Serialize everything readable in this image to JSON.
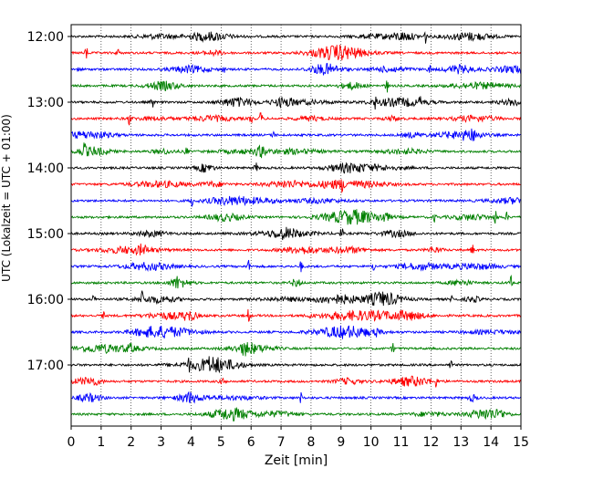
{
  "chart_data": {
    "type": "line",
    "title": "",
    "xlabel": "Zeit  [min]",
    "ylabel": "UTC (Lokalzeit = UTC + 01:00)",
    "xlim": [
      0,
      15
    ],
    "x_ticks": [
      0,
      1,
      2,
      3,
      4,
      5,
      6,
      7,
      8,
      9,
      10,
      11,
      12,
      13,
      14,
      15
    ],
    "x_tick_labels": [
      "0",
      "1",
      "2",
      "3",
      "4",
      "5",
      "6",
      "7",
      "8",
      "9",
      "10",
      "11",
      "12",
      "13",
      "14",
      "15"
    ],
    "y_tick_labels": [
      "12:00",
      "13:00",
      "14:00",
      "15:00",
      "16:00",
      "17:00"
    ],
    "grid": "vertical-dotted",
    "trace_interval_min": 15,
    "series_colors": [
      "#000000",
      "#ff0000",
      "#0000ff",
      "#008000"
    ],
    "traces": [
      {
        "start": "12:00",
        "color": "#000000"
      },
      {
        "start": "12:15",
        "color": "#ff0000"
      },
      {
        "start": "12:30",
        "color": "#0000ff"
      },
      {
        "start": "12:45",
        "color": "#008000"
      },
      {
        "start": "13:00",
        "color": "#000000"
      },
      {
        "start": "13:15",
        "color": "#ff0000"
      },
      {
        "start": "13:30",
        "color": "#0000ff"
      },
      {
        "start": "13:45",
        "color": "#008000"
      },
      {
        "start": "14:00",
        "color": "#000000"
      },
      {
        "start": "14:15",
        "color": "#ff0000"
      },
      {
        "start": "14:30",
        "color": "#0000ff"
      },
      {
        "start": "14:45",
        "color": "#008000"
      },
      {
        "start": "15:00",
        "color": "#000000"
      },
      {
        "start": "15:15",
        "color": "#ff0000"
      },
      {
        "start": "15:30",
        "color": "#0000ff"
      },
      {
        "start": "15:45",
        "color": "#008000"
      },
      {
        "start": "16:00",
        "color": "#000000"
      },
      {
        "start": "16:15",
        "color": "#ff0000"
      },
      {
        "start": "16:30",
        "color": "#0000ff"
      },
      {
        "start": "16:45",
        "color": "#008000"
      },
      {
        "start": "17:00",
        "color": "#000000"
      },
      {
        "start": "17:15",
        "color": "#ff0000"
      },
      {
        "start": "17:30",
        "color": "#0000ff"
      },
      {
        "start": "17:45",
        "color": "#008000"
      }
    ]
  }
}
